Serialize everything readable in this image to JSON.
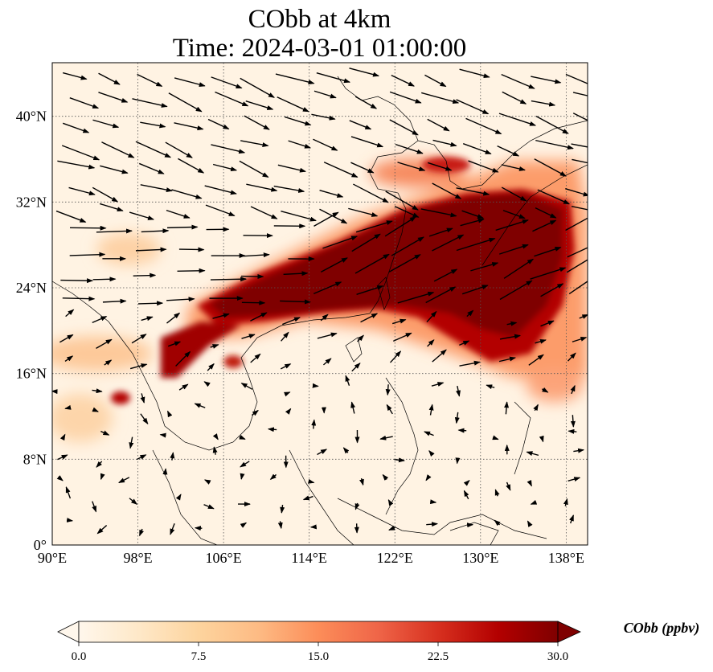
{
  "title": {
    "line1": "CObb at 4km",
    "line2": "Time: 2024-03-01 01:00:00"
  },
  "map": {
    "lon_range": [
      90,
      140
    ],
    "lat_range": [
      0,
      45
    ],
    "x_ticks": [
      "90°E",
      "98°E",
      "106°E",
      "114°E",
      "122°E",
      "130°E",
      "138°E"
    ],
    "x_tick_values": [
      90,
      98,
      106,
      114,
      122,
      130,
      138
    ],
    "y_ticks": [
      "0°",
      "8°N",
      "16°N",
      "24°N",
      "32°N",
      "40°N"
    ],
    "y_tick_values": [
      0,
      8,
      16,
      24,
      32,
      40
    ],
    "gridlines": true,
    "wind_vectors": true
  },
  "colorbar": {
    "label": "CObb (ppbv)",
    "ticks": [
      "0.0",
      "7.5",
      "15.0",
      "22.5",
      "30.0"
    ],
    "tick_values": [
      0,
      7.5,
      15,
      22.5,
      30
    ],
    "range": [
      0,
      30
    ],
    "extend": "both",
    "colormap": "OrRd",
    "colors": [
      "#fff7ec",
      "#fee8c8",
      "#fdd49e",
      "#fdbb84",
      "#fc8d59",
      "#ef6548",
      "#d7301f",
      "#b30000",
      "#7f0000"
    ]
  }
}
